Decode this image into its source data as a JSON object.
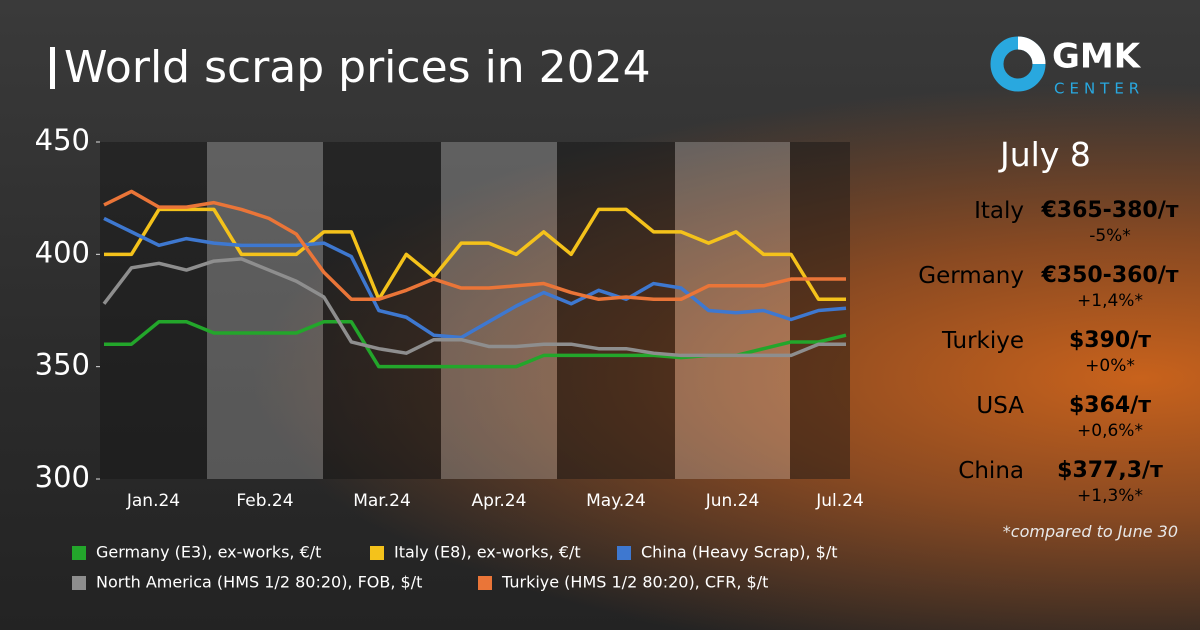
{
  "chart_data": {
    "type": "line",
    "title": "World scrap prices in 2024",
    "categories": [
      null,
      null,
      null,
      null,
      null,
      null,
      null,
      null,
      null,
      null,
      null,
      null,
      null,
      null,
      null,
      null,
      null,
      null,
      null,
      null,
      null,
      null,
      null,
      null,
      null,
      null,
      null,
      null
    ],
    "month_labels": [
      "Jan.24",
      "Feb.24",
      "Mar.24",
      "Apr.24",
      "May.24",
      "Jun.24",
      "Jul.24"
    ],
    "ylim": [
      300,
      450
    ],
    "yticks": [
      300,
      350,
      400,
      450
    ],
    "grid": false,
    "series": [
      {
        "name": "Germany (E3), ex-works, €/t",
        "color": "#23a62b",
        "values": [
          360,
          360,
          370,
          370,
          365,
          365,
          365,
          365,
          370,
          370,
          350,
          350,
          350,
          350,
          350,
          350,
          355,
          355,
          355,
          355,
          355,
          354,
          355,
          355,
          358,
          361,
          361,
          364
        ]
      },
      {
        "name": "Italy (E8), ex-works, €/t",
        "color": "#f4c21b",
        "values": [
          400,
          400,
          420,
          420,
          420,
          400,
          400,
          400,
          410,
          410,
          380,
          400,
          390,
          405,
          405,
          400,
          410,
          400,
          420,
          420,
          410,
          410,
          405,
          410,
          400,
          400,
          380,
          380
        ]
      },
      {
        "name": "China (Heavy Scrap), $/t",
        "color": "#3e78d0",
        "values": [
          416,
          410,
          404,
          407,
          405,
          404,
          404,
          404,
          405,
          399,
          375,
          372,
          364,
          363,
          370,
          377,
          383,
          378,
          384,
          380,
          387,
          385,
          375,
          374,
          375,
          371,
          375,
          376
        ]
      },
      {
        "name": "North America (HMS 1/2 80:20), FOB, $/t",
        "color": "#8e8e8e",
        "values": [
          378,
          394,
          396,
          393,
          397,
          398,
          393,
          388,
          381,
          361,
          358,
          356,
          362,
          362,
          359,
          359,
          360,
          360,
          358,
          358,
          356,
          355,
          355,
          355,
          355,
          355,
          360,
          360
        ]
      },
      {
        "name": "Turkiye (HMS 1/2 80:20), CFR, $/t",
        "color": "#ea7538",
        "values": [
          422,
          428,
          421,
          421,
          423,
          420,
          416,
          409,
          392,
          380,
          380,
          384,
          389,
          385,
          385,
          386,
          387,
          383,
          380,
          381,
          380,
          380,
          386,
          386,
          386,
          389,
          389,
          389
        ]
      }
    ]
  },
  "logo": {
    "name": "GMK",
    "sub": "CENTER"
  },
  "panel": {
    "date": "July 8",
    "rows": [
      {
        "country": "Italy",
        "price": "€365-380/т",
        "change": "-5%*"
      },
      {
        "country": "Germany",
        "price": "€350-360/т",
        "change": "+1,4%*"
      },
      {
        "country": "Turkiye",
        "price": "$390/т",
        "change": "+0%*"
      },
      {
        "country": "USA",
        "price": "$364/т",
        "change": "+0,6%*"
      },
      {
        "country": "China",
        "price": "$377,3/т",
        "change": "+1,3%*"
      }
    ],
    "note": "*compared to June 30"
  }
}
